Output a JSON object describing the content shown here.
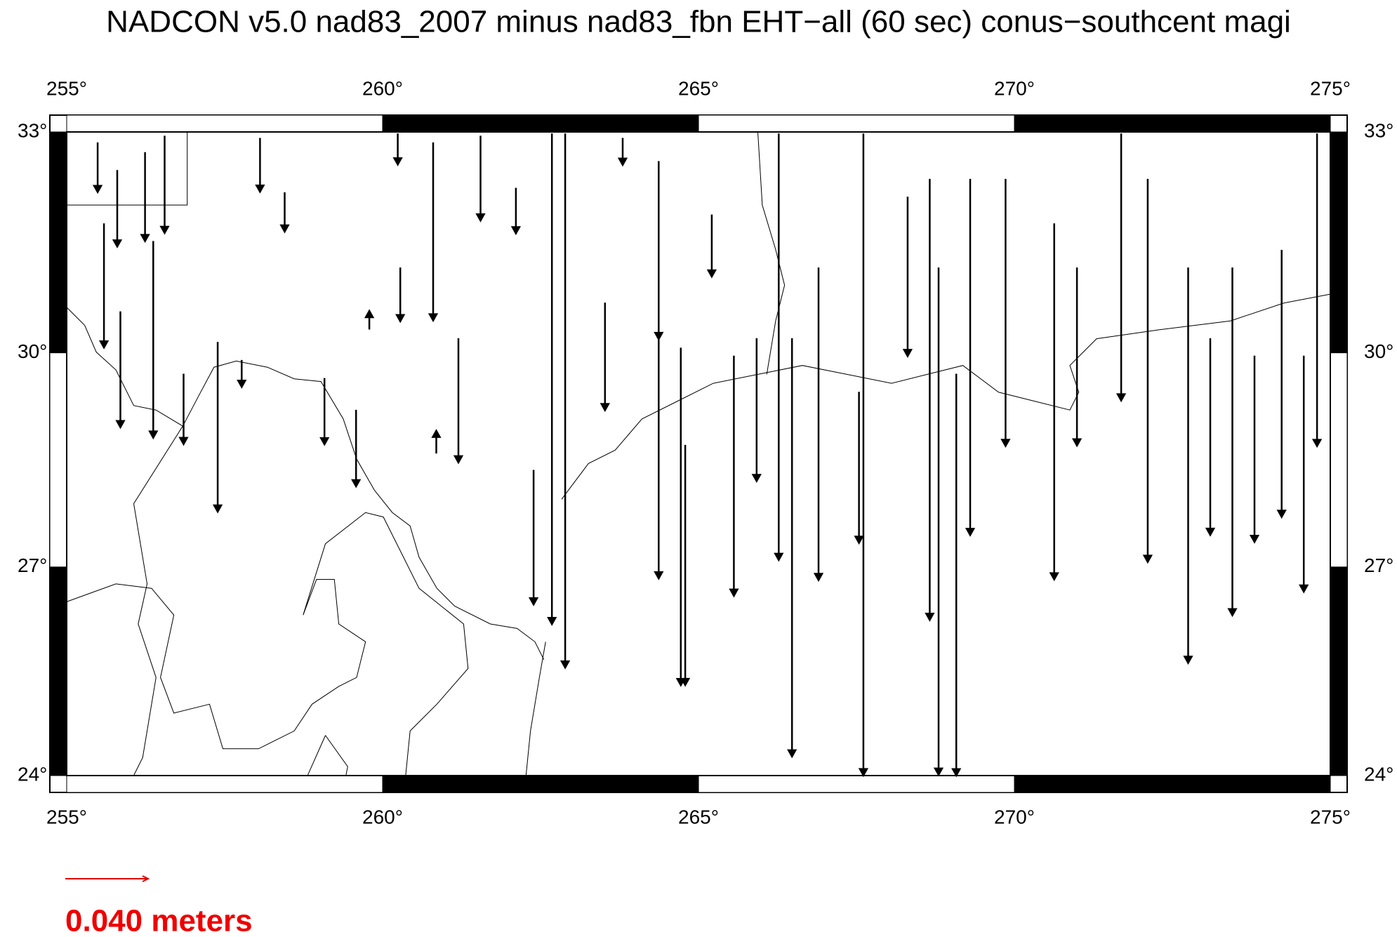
{
  "title": "NADCON v5.0 nad83_2007 minus nad83_fbn EHT−all (60 sec) conus−southcent magi",
  "map": {
    "xlim": [
      255,
      275
    ],
    "ylim": [
      24,
      33
    ],
    "xticks": [
      {
        "value": 255,
        "label": "255°"
      },
      {
        "value": 260,
        "label": "260°"
      },
      {
        "value": 265,
        "label": "265°"
      },
      {
        "value": 270,
        "label": "270°"
      },
      {
        "value": 275,
        "label": "275°"
      }
    ],
    "yticks": [
      {
        "value": 24,
        "label": "24°"
      },
      {
        "value": 27,
        "label": "27°"
      },
      {
        "value": 30,
        "label": "30°"
      },
      {
        "value": 33,
        "label": "33°"
      }
    ],
    "projection": "mercator",
    "arrow_color": "#000000"
  },
  "scale": {
    "value": 0.04,
    "label": "0.040 meters",
    "color": "#e00000"
  },
  "stations": [
    {
      "lon": 255.49,
      "lat": 32.86,
      "dn": -0.024
    },
    {
      "lon": 255.8,
      "lat": 32.49,
      "dn": -0.037
    },
    {
      "lon": 256.24,
      "lat": 32.73,
      "dn": -0.043
    },
    {
      "lon": 256.55,
      "lat": 32.95,
      "dn": -0.047
    },
    {
      "lon": 255.59,
      "lat": 31.77,
      "dn": -0.06
    },
    {
      "lon": 255.85,
      "lat": 30.57,
      "dn": -0.056
    },
    {
      "lon": 256.37,
      "lat": 31.53,
      "dn": -0.095
    },
    {
      "lon": 256.85,
      "lat": 29.71,
      "dn": -0.034
    },
    {
      "lon": 257.39,
      "lat": 30.15,
      "dn": -0.082
    },
    {
      "lon": 257.77,
      "lat": 29.9,
      "dn": -0.013
    },
    {
      "lon": 258.06,
      "lat": 32.92,
      "dn": -0.026
    },
    {
      "lon": 258.45,
      "lat": 32.19,
      "dn": -0.019
    },
    {
      "lon": 259.08,
      "lat": 29.65,
      "dn": -0.032
    },
    {
      "lon": 259.58,
      "lat": 29.21,
      "dn": -0.037
    },
    {
      "lon": 260.24,
      "lat": 32.98,
      "dn": -0.015
    },
    {
      "lon": 260.8,
      "lat": 32.86,
      "dn": -0.086
    },
    {
      "lon": 260.28,
      "lat": 31.17,
      "dn": -0.026
    },
    {
      "lon": 261.55,
      "lat": 32.95,
      "dn": -0.041
    },
    {
      "lon": 261.2,
      "lat": 30.2,
      "dn": -0.06
    },
    {
      "lon": 262.11,
      "lat": 32.25,
      "dn": -0.022
    },
    {
      "lon": 262.68,
      "lat": 32.98,
      "dn": -0.237
    },
    {
      "lon": 262.89,
      "lat": 32.98,
      "dn": -0.258
    },
    {
      "lon": 262.39,
      "lat": 28.37,
      "dn": -0.065
    },
    {
      "lon": 263.52,
      "lat": 30.69,
      "dn": -0.052
    },
    {
      "lon": 263.8,
      "lat": 32.92,
      "dn": -0.013
    },
    {
      "lon": 264.37,
      "lat": 32.61,
      "dn": -0.086
    },
    {
      "lon": 264.37,
      "lat": 30.2,
      "dn": -0.116
    },
    {
      "lon": 264.72,
      "lat": 30.07,
      "dn": -0.163
    },
    {
      "lon": 264.79,
      "lat": 28.72,
      "dn": -0.116
    },
    {
      "lon": 265.21,
      "lat": 31.89,
      "dn": -0.03
    },
    {
      "lon": 265.56,
      "lat": 29.96,
      "dn": -0.116
    },
    {
      "lon": 265.92,
      "lat": 30.2,
      "dn": -0.069
    },
    {
      "lon": 266.27,
      "lat": 32.98,
      "dn": -0.206
    },
    {
      "lon": 266.48,
      "lat": 30.2,
      "dn": -0.202
    },
    {
      "lon": 266.9,
      "lat": 31.17,
      "dn": -0.151
    },
    {
      "lon": 267.54,
      "lat": 29.46,
      "dn": -0.073
    },
    {
      "lon": 267.61,
      "lat": 32.98,
      "dn": -0.31
    },
    {
      "lon": 268.31,
      "lat": 32.13,
      "dn": -0.077
    },
    {
      "lon": 268.66,
      "lat": 32.37,
      "dn": -0.213
    },
    {
      "lon": 268.8,
      "lat": 31.17,
      "dn": -0.245
    },
    {
      "lon": 269.08,
      "lat": 29.71,
      "dn": -0.194
    },
    {
      "lon": 269.3,
      "lat": 32.37,
      "dn": -0.172
    },
    {
      "lon": 269.86,
      "lat": 32.37,
      "dn": -0.129
    },
    {
      "lon": 270.63,
      "lat": 31.77,
      "dn": -0.172
    },
    {
      "lon": 270.99,
      "lat": 31.17,
      "dn": -0.086
    },
    {
      "lon": 271.69,
      "lat": 32.98,
      "dn": -0.129
    },
    {
      "lon": 272.11,
      "lat": 32.37,
      "dn": -0.185
    },
    {
      "lon": 272.75,
      "lat": 31.17,
      "dn": -0.191
    },
    {
      "lon": 273.1,
      "lat": 30.2,
      "dn": -0.095
    },
    {
      "lon": 273.45,
      "lat": 31.17,
      "dn": -0.168
    },
    {
      "lon": 273.8,
      "lat": 29.96,
      "dn": -0.09
    },
    {
      "lon": 274.23,
      "lat": 31.41,
      "dn": -0.129
    },
    {
      "lon": 274.58,
      "lat": 29.96,
      "dn": -0.114
    },
    {
      "lon": 274.79,
      "lat": 32.98,
      "dn": -0.151
    },
    {
      "lon": 259.79,
      "lat": 30.32,
      "dn": 0.009
    },
    {
      "lon": 260.85,
      "lat": 28.6,
      "dn": 0.011
    }
  ]
}
